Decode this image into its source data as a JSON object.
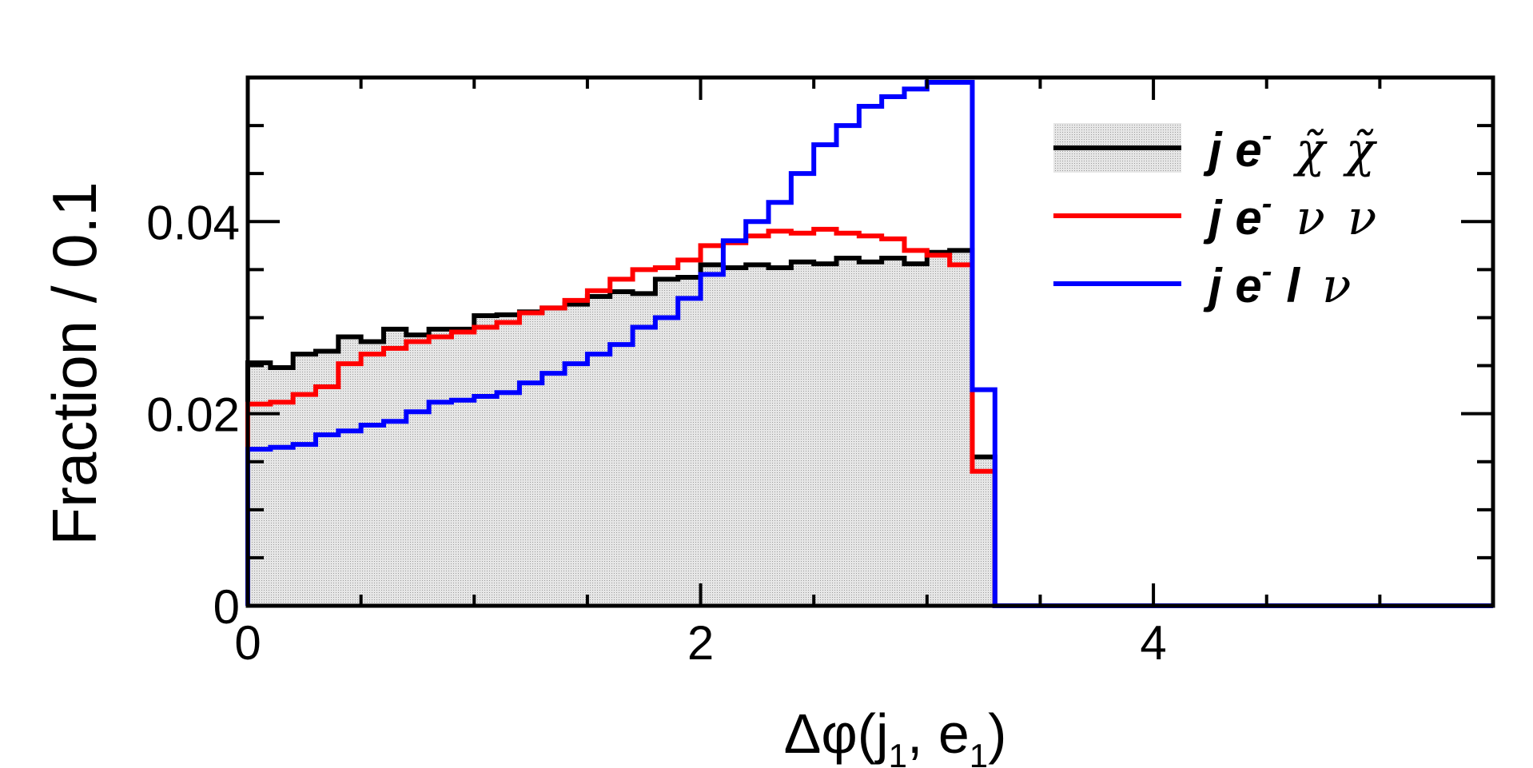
{
  "chart_data": {
    "type": "histogram",
    "xlabel": "Δφ(j",
    "xlabel_sub1": "1",
    "xlabel_mid": ", e",
    "xlabel_sub2": "1",
    "xlabel_end": ")",
    "ylabel": "Fraction / 0.1",
    "xlim": [
      0,
      5.5
    ],
    "ylim": [
      0,
      0.055
    ],
    "bin_width": 0.1,
    "x_ticks": [
      "0",
      "2",
      "4"
    ],
    "y_ticks": [
      "0",
      "0.02",
      "0.04"
    ],
    "grid": false,
    "legend_position": "top-right",
    "series": [
      {
        "name": "j e⁻ χ̃ χ̃",
        "color": "#000000",
        "fill": "#d8d8d8",
        "values": [
          0.0253,
          0.0248,
          0.0262,
          0.0265,
          0.028,
          0.0275,
          0.0288,
          0.0282,
          0.0288,
          0.0288,
          0.0302,
          0.0303,
          0.0306,
          0.031,
          0.0314,
          0.0322,
          0.0327,
          0.0325,
          0.034,
          0.0342,
          0.0355,
          0.0352,
          0.0355,
          0.0352,
          0.0358,
          0.0356,
          0.0362,
          0.0358,
          0.0362,
          0.0356,
          0.0368,
          0.037,
          0.0155,
          0.0
        ]
      },
      {
        "name": "j e⁻ ν ν",
        "color": "#ff0000",
        "values": [
          0.021,
          0.0212,
          0.022,
          0.0228,
          0.0252,
          0.0262,
          0.0268,
          0.0275,
          0.028,
          0.0285,
          0.029,
          0.0295,
          0.0305,
          0.031,
          0.0318,
          0.0328,
          0.034,
          0.035,
          0.0352,
          0.036,
          0.0375,
          0.0378,
          0.0385,
          0.039,
          0.0388,
          0.0392,
          0.0388,
          0.0385,
          0.0382,
          0.037,
          0.0365,
          0.0355,
          0.014,
          0.0
        ]
      },
      {
        "name": "j e⁻ l ν",
        "color": "#0000ff",
        "values": [
          0.0163,
          0.0165,
          0.0168,
          0.0178,
          0.0182,
          0.0188,
          0.0192,
          0.0202,
          0.0212,
          0.0214,
          0.0218,
          0.0222,
          0.0232,
          0.0242,
          0.0252,
          0.0262,
          0.0272,
          0.029,
          0.03,
          0.032,
          0.0345,
          0.038,
          0.04,
          0.042,
          0.045,
          0.048,
          0.05,
          0.052,
          0.053,
          0.0538,
          0.0545,
          0.0545,
          0.0225,
          0.0
        ]
      }
    ]
  }
}
